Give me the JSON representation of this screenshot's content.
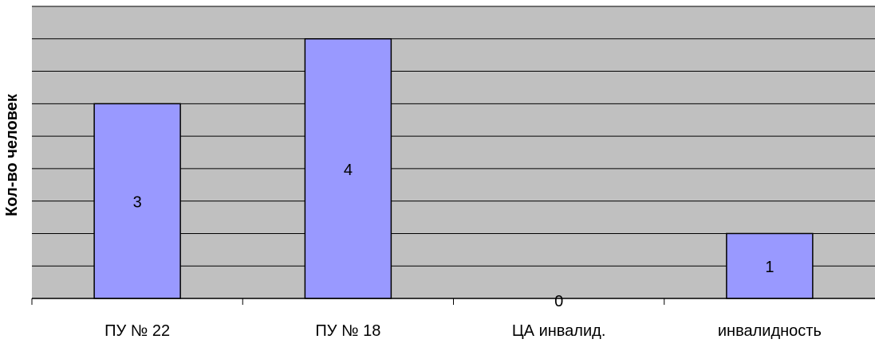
{
  "chart_data": {
    "type": "bar",
    "title": "",
    "xlabel": "",
    "ylabel": "Кол-во человек",
    "categories": [
      "ПУ № 22",
      "ПУ № 18",
      "ЦА инвалид.",
      "инвалидность"
    ],
    "values": [
      3,
      4,
      0,
      1
    ],
    "data_labels": [
      "3",
      "4",
      "0",
      "1"
    ],
    "ylim": [
      0,
      4.5
    ],
    "gridline_step": 0.5,
    "grid": true,
    "legend": "none",
    "colors": {
      "plot_background": "#c0c0c0",
      "bar_fill": "#9999ff",
      "bar_stroke": "#000000",
      "gridline": "#000000",
      "axis": "#000000"
    }
  }
}
